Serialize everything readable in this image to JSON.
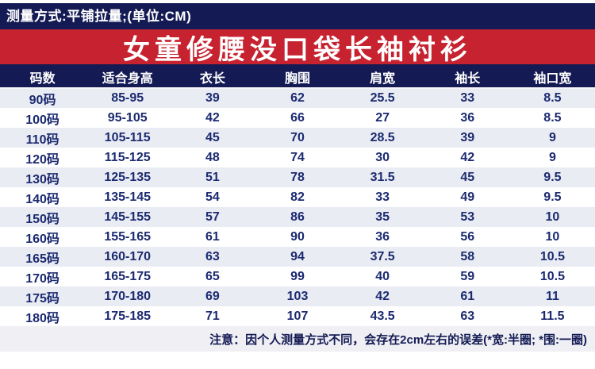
{
  "measure_bar": {
    "text": "测量方式:平铺拉量;(单位:CM)"
  },
  "title": {
    "text": "女童修腰没口袋长袖衬衫"
  },
  "note": {
    "text": "注意：因个人测量方式不同，会存在2cm左右的误差(*宽:半圈; *围:一圈)"
  },
  "colors": {
    "navy": "#141b54",
    "red": "#c6222f",
    "row_alt": "#eaecf3",
    "cell_text": "#1b2a70",
    "note_bg": "#efeff4"
  },
  "chart_data": {
    "type": "table",
    "title": "女童修腰没口袋长袖衬衫",
    "unit_note": "测量方式:平铺拉量;(单位:CM)",
    "headers": [
      "码数",
      "适合身高",
      "衣长",
      "胸围",
      "肩宽",
      "袖长",
      "袖口宽"
    ],
    "rows": [
      [
        "90码",
        "85-95",
        "39",
        "62",
        "25.5",
        "33",
        "8.5"
      ],
      [
        "100码",
        "95-105",
        "42",
        "66",
        "27",
        "36",
        "8.5"
      ],
      [
        "110码",
        "105-115",
        "45",
        "70",
        "28.5",
        "39",
        "9"
      ],
      [
        "120码",
        "115-125",
        "48",
        "74",
        "30",
        "42",
        "9"
      ],
      [
        "130码",
        "125-135",
        "51",
        "78",
        "31.5",
        "45",
        "9.5"
      ],
      [
        "140码",
        "135-145",
        "54",
        "82",
        "33",
        "49",
        "9.5"
      ],
      [
        "150码",
        "145-155",
        "57",
        "86",
        "35",
        "53",
        "10"
      ],
      [
        "160码",
        "155-165",
        "61",
        "90",
        "36",
        "56",
        "10"
      ],
      [
        "165码",
        "160-170",
        "63",
        "94",
        "37.5",
        "58",
        "10.5"
      ],
      [
        "170码",
        "165-175",
        "65",
        "99",
        "40",
        "59",
        "10.5"
      ],
      [
        "175码",
        "170-180",
        "69",
        "103",
        "42",
        "61",
        "11"
      ],
      [
        "180码",
        "175-185",
        "71",
        "107",
        "43.5",
        "63",
        "11.5"
      ]
    ],
    "footnote": "注意：因个人测量方式不同，会存在2cm左右的误差(*宽:半圈; *围:一圈)"
  }
}
